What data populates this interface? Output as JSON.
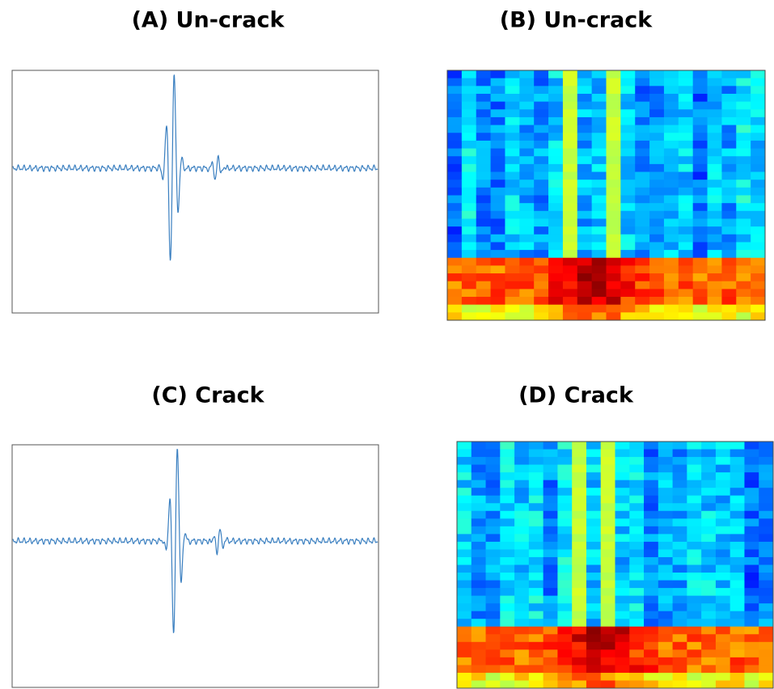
{
  "panels": [
    {
      "title": "(A) Un-crack"
    },
    {
      "title": "(B) Un-crack"
    },
    {
      "title": "(C) Crack"
    },
    {
      "title": "(D) Crack"
    }
  ]
}
